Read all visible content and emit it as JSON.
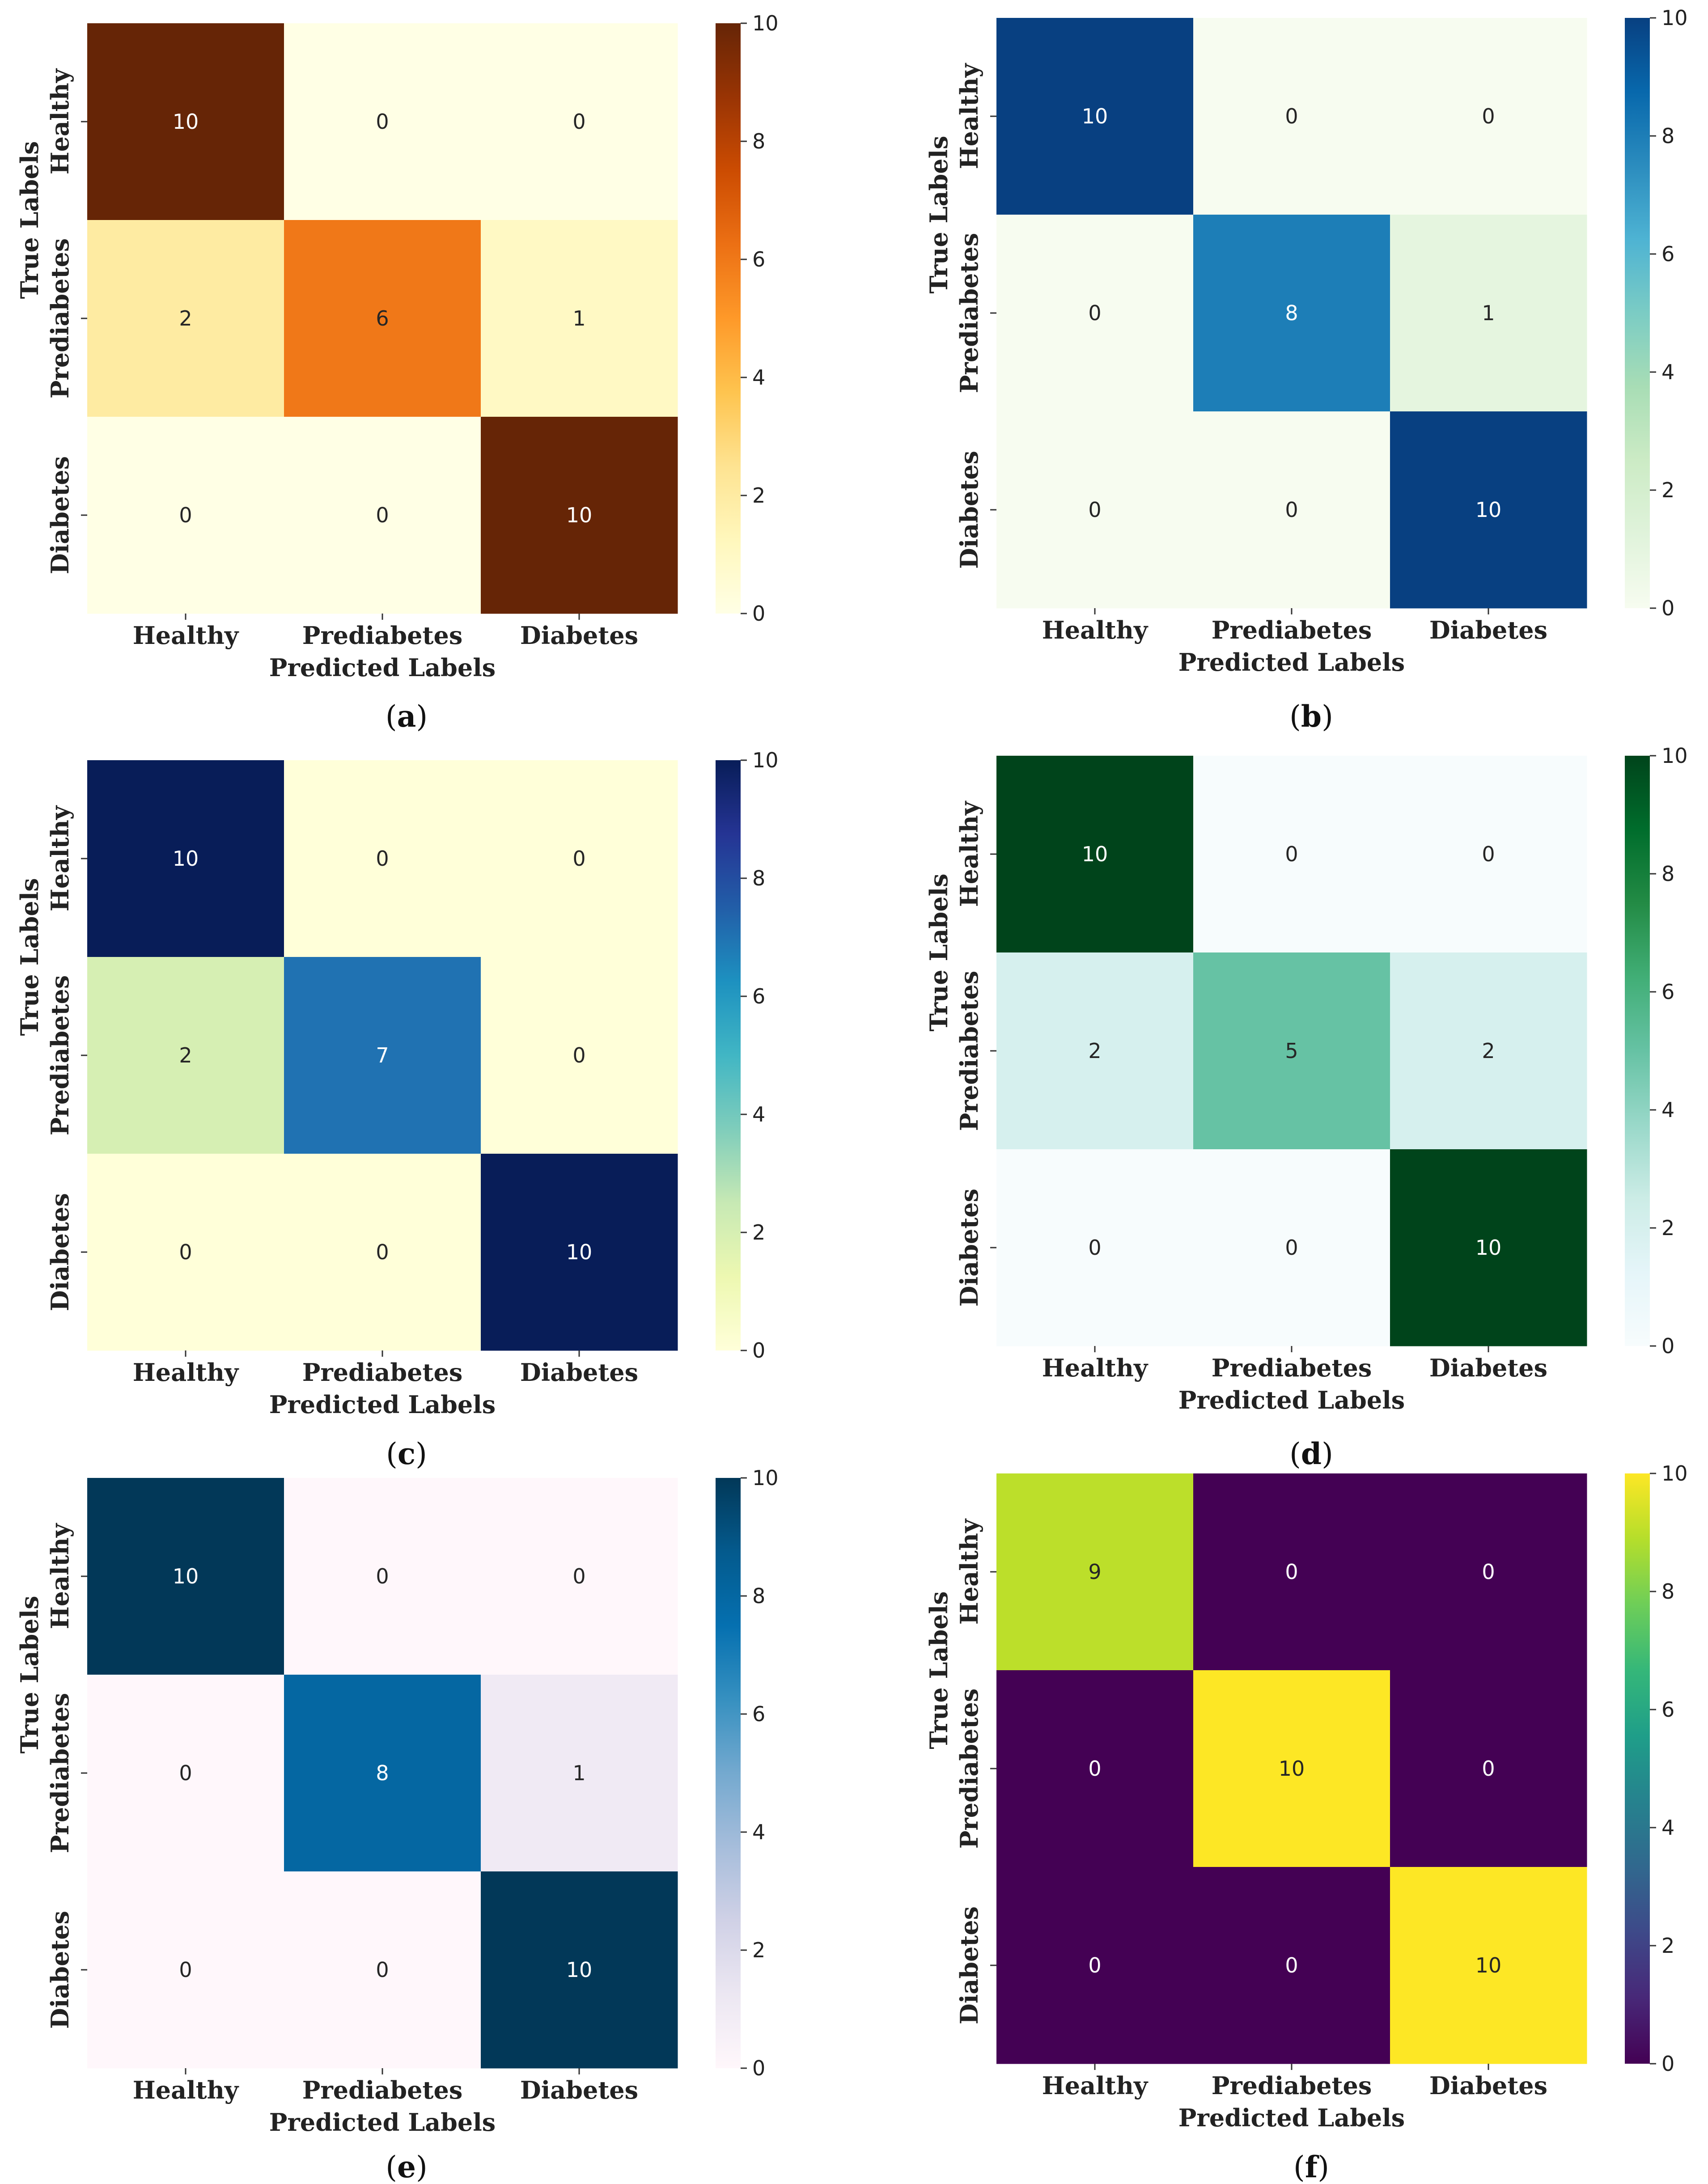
{
  "figure": {
    "row_labels": [
      "Healthy",
      "Prediabetes",
      "Diabetes"
    ],
    "col_labels": [
      "Healthy",
      "Prediabetes",
      "Diabetes"
    ],
    "xlabel": "Predicted Labels",
    "ylabel": "True Labels",
    "colorbar_ticks": [
      "0",
      "2",
      "4",
      "6",
      "8",
      "10"
    ]
  },
  "chart_data": [
    {
      "type": "heatmap",
      "panel": "a",
      "rows": [
        "Healthy",
        "Prediabetes",
        "Diabetes"
      ],
      "cols": [
        "Healthy",
        "Prediabetes",
        "Diabetes"
      ],
      "values": [
        [
          10,
          0,
          0
        ],
        [
          2,
          6,
          1
        ],
        [
          0,
          0,
          10
        ]
      ],
      "xlabel": "Predicted Labels",
      "ylabel": "True Labels",
      "vmin": 0,
      "vmax": 10,
      "colormap": "YlOrBr",
      "colorbar_ticks": [
        0,
        2,
        4,
        6,
        8,
        10
      ]
    },
    {
      "type": "heatmap",
      "panel": "b",
      "rows": [
        "Healthy",
        "Prediabetes",
        "Diabetes"
      ],
      "cols": [
        "Healthy",
        "Prediabetes",
        "Diabetes"
      ],
      "values": [
        [
          10,
          0,
          0
        ],
        [
          0,
          8,
          1
        ],
        [
          0,
          0,
          10
        ]
      ],
      "xlabel": "Predicted Labels",
      "ylabel": "True Labels",
      "vmin": 0,
      "vmax": 10,
      "colormap": "GnBu",
      "colorbar_ticks": [
        0,
        2,
        4,
        6,
        8,
        10
      ]
    },
    {
      "type": "heatmap",
      "panel": "c",
      "rows": [
        "Healthy",
        "Prediabetes",
        "Diabetes"
      ],
      "cols": [
        "Healthy",
        "Prediabetes",
        "Diabetes"
      ],
      "values": [
        [
          10,
          0,
          0
        ],
        [
          2,
          7,
          0
        ],
        [
          0,
          0,
          10
        ]
      ],
      "xlabel": "Predicted Labels",
      "ylabel": "True Labels",
      "vmin": 0,
      "vmax": 10,
      "colormap": "YlGnBu",
      "colorbar_ticks": [
        0,
        2,
        4,
        6,
        8,
        10
      ]
    },
    {
      "type": "heatmap",
      "panel": "d",
      "rows": [
        "Healthy",
        "Prediabetes",
        "Diabetes"
      ],
      "cols": [
        "Healthy",
        "Prediabetes",
        "Diabetes"
      ],
      "values": [
        [
          10,
          0,
          0
        ],
        [
          2,
          5,
          2
        ],
        [
          0,
          0,
          10
        ]
      ],
      "xlabel": "Predicted Labels",
      "ylabel": "True Labels",
      "vmin": 0,
      "vmax": 10,
      "colormap": "BuGn",
      "colorbar_ticks": [
        0,
        2,
        4,
        6,
        8,
        10
      ]
    },
    {
      "type": "heatmap",
      "panel": "e",
      "rows": [
        "Healthy",
        "Prediabetes",
        "Diabetes"
      ],
      "cols": [
        "Healthy",
        "Prediabetes",
        "Diabetes"
      ],
      "values": [
        [
          10,
          0,
          0
        ],
        [
          0,
          8,
          1
        ],
        [
          0,
          0,
          10
        ]
      ],
      "xlabel": "Predicted Labels",
      "ylabel": "True Labels",
      "vmin": 0,
      "vmax": 10,
      "colormap": "PuBu",
      "colorbar_ticks": [
        0,
        2,
        4,
        6,
        8,
        10
      ]
    },
    {
      "type": "heatmap",
      "panel": "f",
      "rows": [
        "Healthy",
        "Prediabetes",
        "Diabetes"
      ],
      "cols": [
        "Healthy",
        "Prediabetes",
        "Diabetes"
      ],
      "values": [
        [
          9,
          0,
          0
        ],
        [
          0,
          10,
          0
        ],
        [
          0,
          0,
          10
        ]
      ],
      "xlabel": "Predicted Labels",
      "ylabel": "True Labels",
      "vmin": 0,
      "vmax": 10,
      "colormap": "viridis",
      "colorbar_ticks": [
        0,
        2,
        4,
        6,
        8,
        10
      ]
    }
  ],
  "colormaps": {
    "YlOrBr": [
      "#ffffe5",
      "#fff7bc",
      "#fee391",
      "#fec44f",
      "#fe9929",
      "#ec7014",
      "#cc4c02",
      "#993404",
      "#662506"
    ],
    "GnBu": [
      "#f7fcf0",
      "#e0f3db",
      "#ccebc5",
      "#a8ddb5",
      "#7bccc4",
      "#4eb3d3",
      "#2b8cbe",
      "#0868ac",
      "#084081"
    ],
    "YlGnBu": [
      "#ffffd9",
      "#edf8b1",
      "#c7e9b4",
      "#7fcdbb",
      "#41b6c4",
      "#1d91c0",
      "#225ea8",
      "#253494",
      "#081d58"
    ],
    "BuGn": [
      "#f7fcfd",
      "#e5f5f9",
      "#ccece6",
      "#99d8c9",
      "#66c2a4",
      "#41ae76",
      "#238b45",
      "#006d2c",
      "#00441b"
    ],
    "PuBu": [
      "#fff7fb",
      "#ece7f2",
      "#d0d1e6",
      "#a6bddb",
      "#74a9cf",
      "#3690c0",
      "#0570b0",
      "#045a8d",
      "#023858"
    ],
    "viridis": [
      "#440154",
      "#482878",
      "#3e4989",
      "#31688e",
      "#26828e",
      "#1f9e89",
      "#35b779",
      "#6ece58",
      "#b5de2b",
      "#fde725"
    ]
  }
}
